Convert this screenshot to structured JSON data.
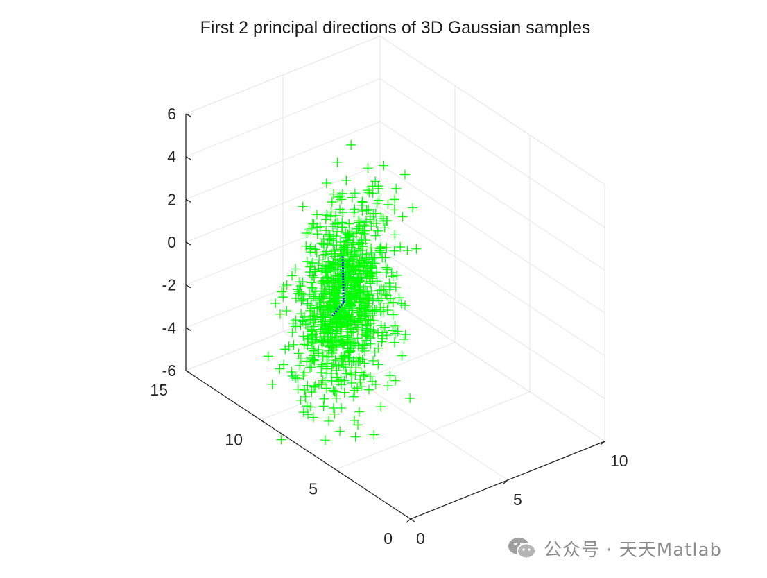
{
  "watermark": {
    "text": "公众号 · 天天Matlab",
    "icon": "wechat-icon",
    "color": "#8c8c8c"
  },
  "chart_data": {
    "type": "scatter",
    "projection": "3d-isometric",
    "title": "First 2 principal directions of 3D Gaussian samples",
    "xlabel": "",
    "ylabel": "",
    "zlabel": "",
    "xlim": [
      0,
      10
    ],
    "ylim": [
      0,
      15
    ],
    "zlim": [
      -6,
      6
    ],
    "x_ticks": [
      0,
      5,
      10
    ],
    "y_ticks": [
      0,
      5,
      10,
      15
    ],
    "z_ticks": [
      -6,
      -4,
      -2,
      0,
      2,
      4,
      6
    ],
    "grid": true,
    "box": "back-planes",
    "colors": {
      "samples": "#00ff00",
      "principal_directions": "#0000ff",
      "axes": "#262626",
      "grid": "#e6e6e6"
    },
    "series": [
      {
        "marker": "plus",
        "color": "#00ff00",
        "distribution": {
          "n": 1000,
          "mean": [
            3.5,
            9.0,
            -1.3
          ],
          "std": [
            1.3,
            1.4,
            1.7
          ],
          "correlation": 0.45,
          "z_range": [
            -5.8,
            5.6
          ]
        }
      },
      {
        "marker": "dot",
        "color": "#0000ff",
        "segments": [
          {
            "from": [
              3.5,
              9.0,
              -1.3
            ],
            "to": [
              3.9,
              9.6,
              0.5
            ]
          },
          {
            "from": [
              3.5,
              9.0,
              -1.3
            ],
            "to": [
              3.0,
              9.1,
              -1.8
            ]
          }
        ]
      }
    ]
  }
}
